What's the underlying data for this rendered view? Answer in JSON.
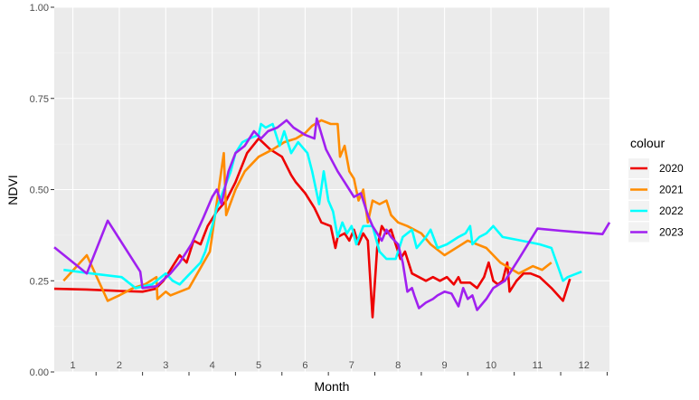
{
  "chart_data": {
    "type": "line",
    "xlabel": "Month",
    "ylabel": "NDVI",
    "xlim": [
      0.6,
      12.55
    ],
    "ylim": [
      0,
      1
    ],
    "y_ticks": [
      "0.00",
      "0.25",
      "0.50",
      "0.75",
      "1.00"
    ],
    "month_labels": [
      "1",
      "2",
      "3",
      "4",
      "5",
      "6",
      "7",
      "8",
      "9",
      "10",
      "11",
      "12"
    ],
    "grid": true,
    "legend": {
      "title": "colour",
      "position": "right"
    },
    "series": [
      {
        "name": "2020",
        "color": "#ee0000",
        "points": [
          [
            0.6,
            0.228
          ],
          [
            1.3,
            0.226
          ],
          [
            2.0,
            0.222
          ],
          [
            2.5,
            0.22
          ],
          [
            2.78,
            0.228
          ],
          [
            2.95,
            0.25
          ],
          [
            3.1,
            0.28
          ],
          [
            3.3,
            0.32
          ],
          [
            3.45,
            0.3
          ],
          [
            3.6,
            0.36
          ],
          [
            3.75,
            0.35
          ],
          [
            3.9,
            0.4
          ],
          [
            4.1,
            0.44
          ],
          [
            4.3,
            0.47
          ],
          [
            4.5,
            0.52
          ],
          [
            4.75,
            0.6
          ],
          [
            5.0,
            0.64
          ],
          [
            5.25,
            0.61
          ],
          [
            5.5,
            0.59
          ],
          [
            5.7,
            0.54
          ],
          [
            5.8,
            0.52
          ],
          [
            6.0,
            0.49
          ],
          [
            6.2,
            0.45
          ],
          [
            6.35,
            0.41
          ],
          [
            6.55,
            0.4
          ],
          [
            6.65,
            0.34
          ],
          [
            6.7,
            0.37
          ],
          [
            6.85,
            0.38
          ],
          [
            6.95,
            0.36
          ],
          [
            7.05,
            0.39
          ],
          [
            7.15,
            0.35
          ],
          [
            7.25,
            0.38
          ],
          [
            7.35,
            0.36
          ],
          [
            7.45,
            0.15
          ],
          [
            7.55,
            0.34
          ],
          [
            7.65,
            0.4
          ],
          [
            7.75,
            0.38
          ],
          [
            7.85,
            0.39
          ],
          [
            7.95,
            0.35
          ],
          [
            8.05,
            0.31
          ],
          [
            8.15,
            0.33
          ],
          [
            8.3,
            0.27
          ],
          [
            8.45,
            0.26
          ],
          [
            8.6,
            0.25
          ],
          [
            8.75,
            0.26
          ],
          [
            8.9,
            0.25
          ],
          [
            9.05,
            0.26
          ],
          [
            9.2,
            0.24
          ],
          [
            9.3,
            0.26
          ],
          [
            9.35,
            0.245
          ],
          [
            9.55,
            0.245
          ],
          [
            9.7,
            0.23
          ],
          [
            9.85,
            0.26
          ],
          [
            9.95,
            0.3
          ],
          [
            10.05,
            0.25
          ],
          [
            10.15,
            0.24
          ],
          [
            10.25,
            0.25
          ],
          [
            10.35,
            0.3
          ],
          [
            10.4,
            0.22
          ],
          [
            10.55,
            0.25
          ],
          [
            10.7,
            0.27
          ],
          [
            10.85,
            0.27
          ],
          [
            11.05,
            0.26
          ],
          [
            11.3,
            0.23
          ],
          [
            11.55,
            0.195
          ],
          [
            11.7,
            0.255
          ]
        ]
      },
      {
        "name": "2021",
        "color": "#ff8c00",
        "points": [
          [
            0.8,
            0.25
          ],
          [
            1.3,
            0.32
          ],
          [
            1.75,
            0.195
          ],
          [
            2.0,
            0.21
          ],
          [
            2.3,
            0.23
          ],
          [
            2.55,
            0.24
          ],
          [
            2.8,
            0.26
          ],
          [
            2.82,
            0.2
          ],
          [
            3.0,
            0.22
          ],
          [
            3.1,
            0.21
          ],
          [
            3.5,
            0.23
          ],
          [
            3.95,
            0.33
          ],
          [
            4.25,
            0.6
          ],
          [
            4.3,
            0.43
          ],
          [
            4.5,
            0.5
          ],
          [
            4.7,
            0.55
          ],
          [
            5.0,
            0.59
          ],
          [
            5.3,
            0.61
          ],
          [
            5.55,
            0.63
          ],
          [
            5.8,
            0.64
          ],
          [
            6.0,
            0.655
          ],
          [
            6.15,
            0.675
          ],
          [
            6.35,
            0.69
          ],
          [
            6.55,
            0.68
          ],
          [
            6.7,
            0.68
          ],
          [
            6.75,
            0.59
          ],
          [
            6.85,
            0.62
          ],
          [
            6.95,
            0.55
          ],
          [
            7.05,
            0.53
          ],
          [
            7.15,
            0.47
          ],
          [
            7.25,
            0.5
          ],
          [
            7.35,
            0.41
          ],
          [
            7.45,
            0.47
          ],
          [
            7.6,
            0.46
          ],
          [
            7.75,
            0.47
          ],
          [
            7.85,
            0.43
          ],
          [
            8.0,
            0.41
          ],
          [
            8.2,
            0.4
          ],
          [
            8.5,
            0.38
          ],
          [
            8.7,
            0.35
          ],
          [
            9.0,
            0.32
          ],
          [
            9.5,
            0.36
          ],
          [
            9.9,
            0.34
          ],
          [
            10.2,
            0.3
          ],
          [
            10.6,
            0.27
          ],
          [
            10.9,
            0.29
          ],
          [
            11.1,
            0.28
          ],
          [
            11.3,
            0.3
          ]
        ]
      },
      {
        "name": "2022",
        "color": "#00ffff",
        "points": [
          [
            0.8,
            0.28
          ],
          [
            1.4,
            0.27
          ],
          [
            2.05,
            0.26
          ],
          [
            2.35,
            0.23
          ],
          [
            2.7,
            0.24
          ],
          [
            3.0,
            0.27
          ],
          [
            3.15,
            0.25
          ],
          [
            3.3,
            0.24
          ],
          [
            3.45,
            0.26
          ],
          [
            3.75,
            0.3
          ],
          [
            3.85,
            0.33
          ],
          [
            4.0,
            0.4
          ],
          [
            4.1,
            0.45
          ],
          [
            4.25,
            0.5
          ],
          [
            4.4,
            0.55
          ],
          [
            4.5,
            0.6
          ],
          [
            4.65,
            0.63
          ],
          [
            4.8,
            0.64
          ],
          [
            5.0,
            0.65
          ],
          [
            5.05,
            0.68
          ],
          [
            5.15,
            0.67
          ],
          [
            5.3,
            0.68
          ],
          [
            5.45,
            0.62
          ],
          [
            5.55,
            0.66
          ],
          [
            5.7,
            0.6
          ],
          [
            5.85,
            0.63
          ],
          [
            6.05,
            0.6
          ],
          [
            6.15,
            0.55
          ],
          [
            6.3,
            0.46
          ],
          [
            6.4,
            0.55
          ],
          [
            6.5,
            0.47
          ],
          [
            6.6,
            0.44
          ],
          [
            6.7,
            0.37
          ],
          [
            6.8,
            0.41
          ],
          [
            6.9,
            0.38
          ],
          [
            7.0,
            0.4
          ],
          [
            7.1,
            0.35
          ],
          [
            7.25,
            0.4
          ],
          [
            7.45,
            0.4
          ],
          [
            7.6,
            0.33
          ],
          [
            7.75,
            0.31
          ],
          [
            7.95,
            0.31
          ],
          [
            8.1,
            0.37
          ],
          [
            8.3,
            0.39
          ],
          [
            8.4,
            0.34
          ],
          [
            8.6,
            0.37
          ],
          [
            8.7,
            0.39
          ],
          [
            8.85,
            0.34
          ],
          [
            9.05,
            0.35
          ],
          [
            9.3,
            0.37
          ],
          [
            9.45,
            0.38
          ],
          [
            9.55,
            0.4
          ],
          [
            9.6,
            0.35
          ],
          [
            9.75,
            0.37
          ],
          [
            9.9,
            0.38
          ],
          [
            10.05,
            0.4
          ],
          [
            10.25,
            0.37
          ],
          [
            10.65,
            0.36
          ],
          [
            11.05,
            0.35
          ],
          [
            11.3,
            0.34
          ],
          [
            11.55,
            0.25
          ],
          [
            11.65,
            0.26
          ],
          [
            11.95,
            0.275
          ]
        ]
      },
      {
        "name": "2023",
        "color": "#a020f0",
        "points": [
          [
            0.6,
            0.342
          ],
          [
            1.3,
            0.27
          ],
          [
            1.75,
            0.415
          ],
          [
            2.45,
            0.275
          ],
          [
            2.5,
            0.23
          ],
          [
            2.8,
            0.235
          ],
          [
            3.1,
            0.27
          ],
          [
            3.3,
            0.3
          ],
          [
            3.55,
            0.35
          ],
          [
            3.8,
            0.42
          ],
          [
            4.0,
            0.48
          ],
          [
            4.1,
            0.5
          ],
          [
            4.2,
            0.46
          ],
          [
            4.35,
            0.55
          ],
          [
            4.5,
            0.6
          ],
          [
            4.7,
            0.62
          ],
          [
            4.9,
            0.66
          ],
          [
            5.05,
            0.64
          ],
          [
            5.2,
            0.66
          ],
          [
            5.4,
            0.67
          ],
          [
            5.6,
            0.69
          ],
          [
            5.75,
            0.67
          ],
          [
            6.0,
            0.65
          ],
          [
            6.2,
            0.64
          ],
          [
            6.25,
            0.695
          ],
          [
            6.45,
            0.61
          ],
          [
            6.7,
            0.55
          ],
          [
            6.95,
            0.5
          ],
          [
            7.05,
            0.48
          ],
          [
            7.2,
            0.49
          ],
          [
            7.35,
            0.43
          ],
          [
            7.45,
            0.4
          ],
          [
            7.55,
            0.38
          ],
          [
            7.65,
            0.36
          ],
          [
            7.75,
            0.39
          ],
          [
            7.85,
            0.37
          ],
          [
            8.0,
            0.35
          ],
          [
            8.1,
            0.3
          ],
          [
            8.2,
            0.22
          ],
          [
            8.3,
            0.23
          ],
          [
            8.35,
            0.21
          ],
          [
            8.45,
            0.175
          ],
          [
            8.6,
            0.19
          ],
          [
            8.75,
            0.2
          ],
          [
            8.85,
            0.21
          ],
          [
            9.0,
            0.22
          ],
          [
            9.15,
            0.215
          ],
          [
            9.3,
            0.18
          ],
          [
            9.4,
            0.23
          ],
          [
            9.5,
            0.2
          ],
          [
            9.6,
            0.21
          ],
          [
            9.7,
            0.17
          ],
          [
            9.9,
            0.2
          ],
          [
            10.05,
            0.23
          ],
          [
            10.3,
            0.25
          ],
          [
            10.6,
            0.31
          ],
          [
            11.0,
            0.393
          ],
          [
            11.5,
            0.387
          ],
          [
            12.4,
            0.378
          ],
          [
            12.55,
            0.41
          ]
        ]
      }
    ]
  }
}
